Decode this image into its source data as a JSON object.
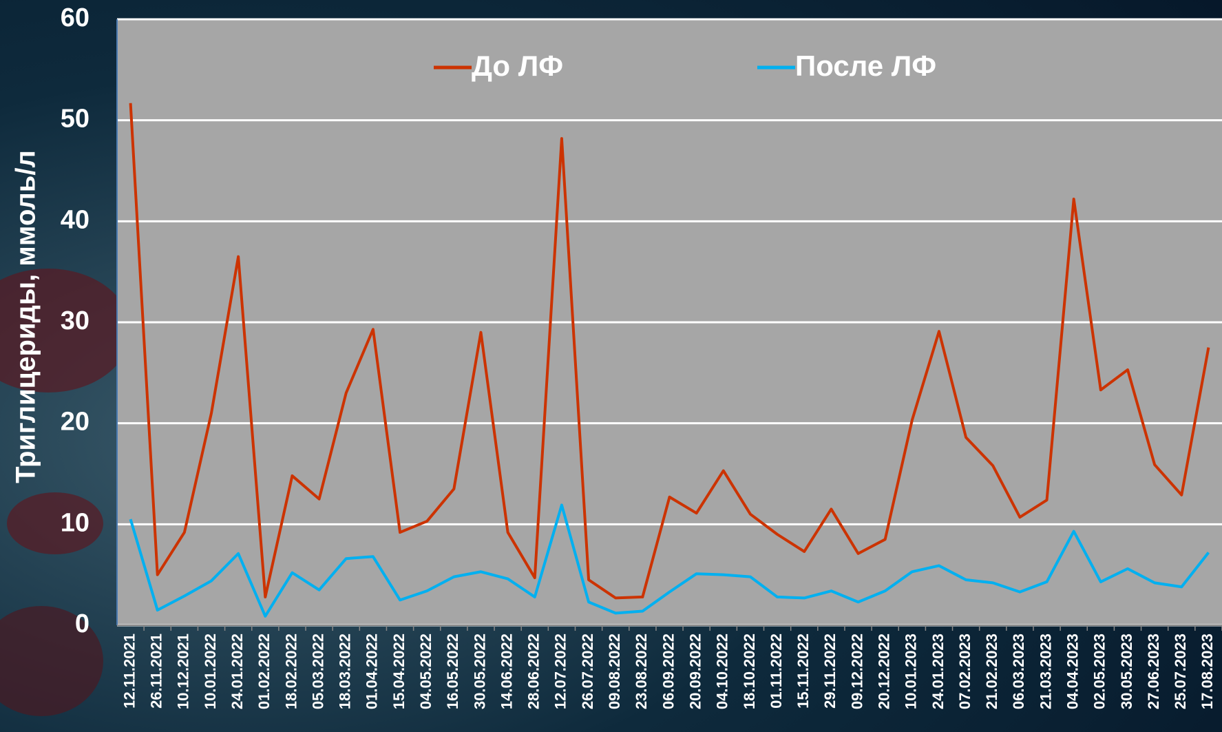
{
  "chart_data": {
    "type": "line",
    "y_label": "Триглицериды, ммоль/л",
    "categories": [
      "12.11.2021",
      "26.11.2021",
      "10.12.2021",
      "10.01.2022",
      "24.01.2022",
      "01.02.2022",
      "18.02.2022",
      "05.03.2022",
      "18.03.2022",
      "01.04.2022",
      "15.04.2022",
      "04.05.2022",
      "16.05.2022",
      "30.05.2022",
      "14.06.2022",
      "28.06.2022",
      "12.07.2022",
      "26.07.2022",
      "09.08.2022",
      "23.08.2022",
      "06.09.2022",
      "20.09.2022",
      "04.10.2022",
      "18.10.2022",
      "01.11.2022",
      "15.11.2022",
      "29.11.2022",
      "09.12.2022",
      "20.12.2022",
      "10.01.2023",
      "24.01.2023",
      "07.02.2023",
      "21.02.2023",
      "06.03.2023",
      "21.03.2023",
      "04.04.2023",
      "02.05.2023",
      "30.05.2023",
      "27.06.2023",
      "25.07.2023",
      "17.08.2023"
    ],
    "series": [
      {
        "name": "До ЛФ",
        "color": "#cc3300",
        "values": [
          51.7,
          5.0,
          9.2,
          21,
          36.5,
          2.8,
          14.8,
          12.5,
          23,
          29.3,
          9.2,
          10.3,
          13.5,
          29,
          9.2,
          4.7,
          48.2,
          4.5,
          2.7,
          2.8,
          12.7,
          11.1,
          15.3,
          11,
          9,
          7.3,
          11.5,
          7.1,
          8.5,
          20.3,
          29.1,
          18.6,
          15.8,
          10.7,
          12.4,
          42.2,
          23.3,
          25.3,
          15.9,
          12.9,
          27.5
        ]
      },
      {
        "name": "После ЛФ",
        "color": "#00b0f0",
        "values": [
          10.5,
          1.5,
          2.9,
          4.4,
          7.1,
          0.9,
          5.2,
          3.5,
          6.6,
          6.8,
          2.5,
          3.4,
          4.8,
          5.3,
          4.6,
          2.8,
          11.9,
          2.3,
          1.2,
          1.4,
          3.3,
          5.1,
          5.0,
          4.8,
          2.8,
          2.7,
          3.4,
          2.3,
          3.4,
          5.3,
          5.9,
          4.5,
          4.2,
          3.3,
          4.3,
          9.3,
          4.3,
          5.6,
          4.2,
          3.8,
          7.2
        ]
      }
    ],
    "ylim": [
      0,
      60
    ],
    "yticks": [
      0,
      10,
      20,
      30,
      40,
      50,
      60
    ],
    "grid": true
  }
}
